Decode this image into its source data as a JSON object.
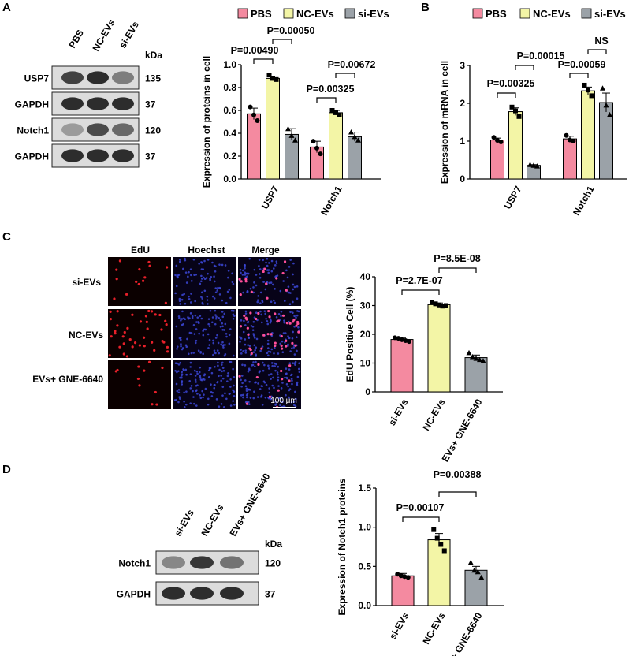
{
  "panels": {
    "A": "A",
    "B": "B",
    "C": "C",
    "D": "D"
  },
  "colors": {
    "pbs": "#f48aa0",
    "nc": "#f3f5a6",
    "si": "#9ba2a8",
    "edu_red": "#e8202a",
    "hoechst_blue": "#3b46d6"
  },
  "blotA": {
    "lanes": [
      "PBS",
      "NC-EVs",
      "si-EVs"
    ],
    "kda_label": "kDa",
    "rows": [
      {
        "name": "USP7",
        "kda": "135",
        "intensity": [
          0.85,
          0.95,
          0.55
        ]
      },
      {
        "name": "GAPDH",
        "kda": "37",
        "intensity": [
          0.95,
          0.95,
          0.95
        ]
      },
      {
        "name": "Notch1",
        "kda": "120",
        "intensity": [
          0.4,
          0.8,
          0.65
        ]
      },
      {
        "name": "GAPDH",
        "kda": "37",
        "intensity": [
          0.95,
          0.95,
          0.95
        ]
      }
    ]
  },
  "blotD": {
    "lanes": [
      "si-EVs",
      "NC-EVs",
      "EVs+ GNE-6640"
    ],
    "kda_label": "kDa",
    "rows": [
      {
        "name": "Notch1",
        "kda": "120",
        "intensity": [
          0.5,
          0.9,
          0.6
        ]
      },
      {
        "name": "GAPDH",
        "kda": "37",
        "intensity": [
          0.95,
          0.95,
          0.95
        ]
      }
    ]
  },
  "microscopy": {
    "columns": [
      "EdU",
      "Hoechst",
      "Merge"
    ],
    "rows": [
      "si-EVs",
      "NC-EVs",
      "EVs+ GNE-6640"
    ],
    "red_density": [
      0.25,
      0.7,
      0.2
    ],
    "scale_bar": "100 μm"
  },
  "chart_data": [
    {
      "id": "A-chart",
      "type": "bar",
      "categories": [
        "USP7",
        "Notch1"
      ],
      "series": [
        {
          "name": "PBS",
          "values": [
            0.57,
            0.28
          ],
          "errors": [
            0.05,
            0.05
          ],
          "points": [
            [
              0.63,
              0.56,
              0.51
            ],
            [
              0.33,
              0.27,
              0.22
            ]
          ]
        },
        {
          "name": "NC-EVs",
          "values": [
            0.88,
            0.58
          ],
          "errors": [
            0.02,
            0.02
          ],
          "points": [
            [
              0.91,
              0.88,
              0.87
            ],
            [
              0.6,
              0.58,
              0.56
            ]
          ]
        },
        {
          "name": "si-EVs",
          "values": [
            0.39,
            0.37
          ],
          "errors": [
            0.05,
            0.04
          ],
          "points": [
            [
              0.44,
              0.38,
              0.34
            ],
            [
              0.41,
              0.37,
              0.34
            ]
          ]
        }
      ],
      "ylabel": "Expression of proteins in cell",
      "ylim": [
        0,
        1.0
      ],
      "yticks": [
        "0.0",
        "0.2",
        "0.4",
        "0.6",
        "0.8",
        "1.0"
      ],
      "annotations": [
        "P=0.00490",
        "P=0.00050",
        "P=0.00325",
        "P=0.00672"
      ],
      "legend": [
        "PBS",
        "NC-EVs",
        "si-EVs"
      ]
    },
    {
      "id": "B-chart",
      "type": "bar",
      "categories": [
        "USP7",
        "Notch1"
      ],
      "series": [
        {
          "name": "PBS",
          "values": [
            1.03,
            1.06
          ],
          "errors": [
            0.05,
            0.07
          ],
          "points": [
            [
              1.1,
              1.02,
              0.98
            ],
            [
              1.15,
              1.03,
              1.0
            ]
          ]
        },
        {
          "name": "NC-EVs",
          "values": [
            1.78,
            2.33
          ],
          "errors": [
            0.1,
            0.1
          ],
          "points": [
            [
              1.9,
              1.8,
              1.65
            ],
            [
              2.48,
              2.35,
              2.2
            ]
          ]
        },
        {
          "name": "si-EVs",
          "values": [
            0.36,
            2.02
          ],
          "errors": [
            0.02,
            0.25
          ],
          "points": [
            [
              0.38,
              0.36,
              0.34
            ],
            [
              2.4,
              1.95,
              1.7
            ]
          ]
        }
      ],
      "ylabel": "Expression of mRNA in cell",
      "ylim": [
        0,
        3
      ],
      "yticks": [
        "0",
        "1",
        "2",
        "3"
      ],
      "annotations": [
        "P=0.00325",
        "P=0.00015",
        "P=0.00059",
        "NS"
      ],
      "legend": [
        "PBS",
        "NC-EVs",
        "si-EVs"
      ]
    },
    {
      "id": "C-chart",
      "type": "bar",
      "categories": [
        "si-EVs",
        "NC-EVs",
        "EVs+ GNE-6640"
      ],
      "values": [
        18.2,
        30.3,
        11.9
      ],
      "errors": [
        0.5,
        0.6,
        0.9
      ],
      "points": [
        [
          18.8,
          18.6,
          18.1,
          17.8,
          17.5
        ],
        [
          31.2,
          30.6,
          30.2,
          29.8,
          30.0
        ],
        [
          13.6,
          12.2,
          11.6,
          11.2,
          10.8
        ]
      ],
      "ylabel": "EdU Positive Cell (%)",
      "ylim": [
        0,
        40
      ],
      "yticks": [
        "0",
        "10",
        "20",
        "30",
        "40"
      ],
      "annotations": [
        "P=2.7E-07",
        "P=8.5E-08"
      ]
    },
    {
      "id": "D-chart",
      "type": "bar",
      "categories": [
        "si-EVs",
        "NC-EVs",
        "EVs+ GNE-6640"
      ],
      "values": [
        0.38,
        0.84,
        0.45
      ],
      "errors": [
        0.03,
        0.08,
        0.05
      ],
      "points": [
        [
          0.4,
          0.38,
          0.37,
          0.36
        ],
        [
          0.97,
          0.86,
          0.78,
          0.7
        ],
        [
          0.55,
          0.45,
          0.43,
          0.36
        ]
      ],
      "ylabel": "Expression of Notch1 proteins",
      "ylim": [
        0,
        1.5
      ],
      "yticks": [
        "0.0",
        "0.5",
        "1.0",
        "1.5"
      ],
      "annotations": [
        "P=0.00107",
        "P=0.00388"
      ]
    }
  ]
}
